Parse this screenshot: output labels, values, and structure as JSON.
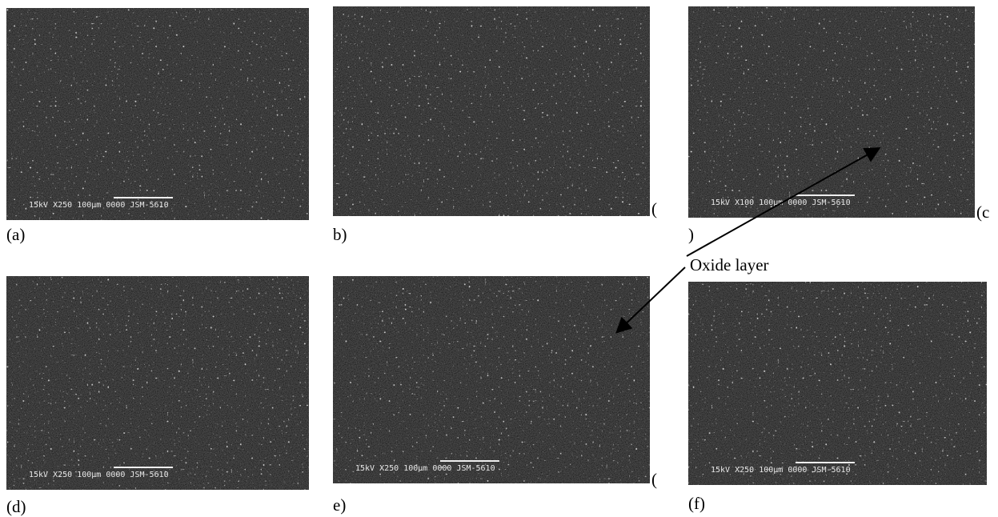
{
  "annotation": "Oxide layer",
  "panels": [
    {
      "label": "(a)",
      "info": "15kV    X250  100µm  0000  JSM-5610"
    },
    {
      "label": "b)",
      "side_label": "(",
      "info": ""
    },
    {
      "label": ")",
      "side_label": "(c",
      "info": "15kV    X100  100µm  0000  JSM-5610"
    },
    {
      "label": "(d)",
      "info": "15kV    X250  100µm  0000  JSM-5610"
    },
    {
      "label": "e)",
      "side_label": "(",
      "info": "15kV    X250  100µm  0000  JSM-5610"
    },
    {
      "label": "(f)",
      "info": "15kV    X250  100µm  0000  JSM-5610"
    }
  ]
}
